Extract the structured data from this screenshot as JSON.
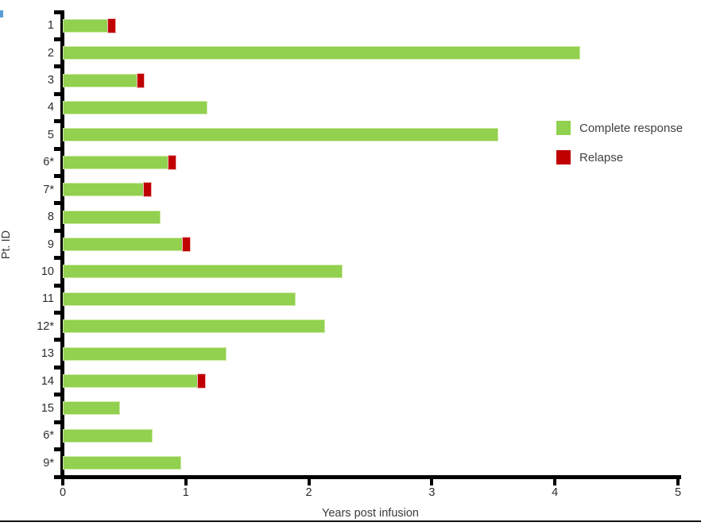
{
  "chart_data": {
    "type": "bar",
    "orientation": "horizontal",
    "title": "",
    "xlabel": "Years post infusion",
    "ylabel": "Pt. ID",
    "xlim": [
      0,
      5
    ],
    "xticks": [
      "0",
      "1",
      "2",
      "3",
      "4",
      "5"
    ],
    "grid": false,
    "legend_position": "right-upper",
    "colors": {
      "complete_response": "#92d050",
      "complete_response_border": "#cdeaa5",
      "relapse": "#c00000",
      "relapse_border": "#f0b9b9",
      "axis": "#000000"
    },
    "legend": [
      {
        "label": "Complete response",
        "color": "#92d050"
      },
      {
        "label": "Relapse",
        "color": "#c00000"
      }
    ],
    "series_note": "Each row: green = duration of complete response (years); red cap = relapse event at end of response",
    "patients": [
      {
        "id": "1",
        "complete_response_years": 0.36,
        "relapse_end_years": 0.42
      },
      {
        "id": "2",
        "complete_response_years": 4.19,
        "relapse_end_years": null
      },
      {
        "id": "3",
        "complete_response_years": 0.6,
        "relapse_end_years": 0.65
      },
      {
        "id": "4",
        "complete_response_years": 1.16,
        "relapse_end_years": null
      },
      {
        "id": "5",
        "complete_response_years": 3.53,
        "relapse_end_years": null
      },
      {
        "id": "6*",
        "complete_response_years": 0.85,
        "relapse_end_years": 0.91
      },
      {
        "id": "7*",
        "complete_response_years": 0.65,
        "relapse_end_years": 0.71
      },
      {
        "id": "8",
        "complete_response_years": 0.78,
        "relapse_end_years": null
      },
      {
        "id": "9",
        "complete_response_years": 0.97,
        "relapse_end_years": 1.03
      },
      {
        "id": "10",
        "complete_response_years": 2.26,
        "relapse_end_years": null
      },
      {
        "id": "11",
        "complete_response_years": 1.88,
        "relapse_end_years": null
      },
      {
        "id": "12*",
        "complete_response_years": 2.12,
        "relapse_end_years": null
      },
      {
        "id": "13",
        "complete_response_years": 1.32,
        "relapse_end_years": null
      },
      {
        "id": "14",
        "complete_response_years": 1.09,
        "relapse_end_years": 1.15
      },
      {
        "id": "15",
        "complete_response_years": 0.45,
        "relapse_end_years": null
      },
      {
        "id": "6*",
        "complete_response_years": 0.72,
        "relapse_end_years": null
      },
      {
        "id": "9*",
        "complete_response_years": 0.95,
        "relapse_end_years": null
      }
    ]
  }
}
